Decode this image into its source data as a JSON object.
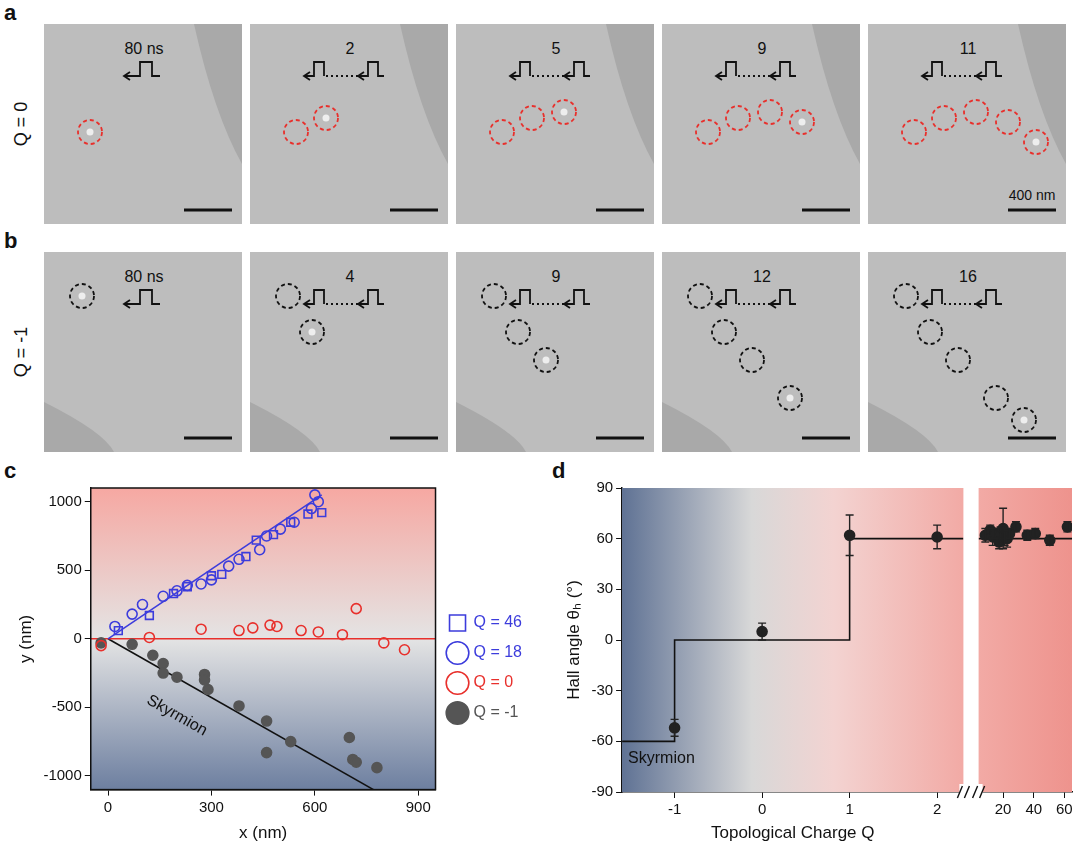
{
  "images": [
    {
      "letter": "a",
      "row_label": "Q = 0",
      "color": "#e8302c",
      "scale_bar_label": "400 nm",
      "frames": [
        {
          "pulse": "80 ns",
          "circles": 1
        },
        {
          "pulse": "2",
          "circles": 2
        },
        {
          "pulse": "5",
          "circles": 3
        },
        {
          "pulse": "9",
          "circles": 4
        },
        {
          "pulse": "11",
          "circles": 5
        }
      ]
    },
    {
      "letter": "b",
      "row_label": "Q = -1",
      "color": "#111111",
      "frames": [
        {
          "pulse": "80 ns",
          "circles": 1
        },
        {
          "pulse": "4",
          "circles": 2
        },
        {
          "pulse": "9",
          "circles": 3
        },
        {
          "pulse": "12",
          "circles": 4
        },
        {
          "pulse": "16",
          "circles": 5
        }
      ]
    }
  ],
  "chart_data": [
    {
      "panel": "c",
      "type": "scatter",
      "x_label": "x (nm)",
      "y_label": "y (nm)",
      "xlim": [
        -50,
        950
      ],
      "ylim": [
        -1100,
        1100
      ],
      "xticks": [
        0,
        300,
        600,
        900
      ],
      "yticks": [
        -1000,
        -500,
        0,
        500,
        1000
      ],
      "grid": false,
      "legend": "right",
      "series": [
        {
          "name": "Q = 46",
          "color": "#3c3cdc",
          "marker": "square_open",
          "x": [
            30,
            120,
            190,
            230,
            300,
            330,
            400,
            430,
            480,
            530,
            580,
            620
          ],
          "values": [
            60,
            170,
            330,
            380,
            460,
            470,
            600,
            720,
            760,
            850,
            910,
            920
          ]
        },
        {
          "name": "Q = 18",
          "color": "#3c3cdc",
          "marker": "circle_open",
          "x": [
            20,
            70,
            100,
            160,
            200,
            230,
            270,
            300,
            350,
            380,
            440,
            460,
            500,
            540,
            590,
            600,
            610
          ],
          "values": [
            90,
            180,
            250,
            310,
            350,
            390,
            400,
            430,
            530,
            580,
            650,
            750,
            800,
            850,
            950,
            1050,
            1000
          ]
        },
        {
          "name": "Q = 0",
          "color": "#e8302c",
          "marker": "circle_open",
          "x": [
            -20,
            120,
            270,
            380,
            420,
            470,
            490,
            560,
            610,
            680,
            720,
            800,
            860
          ],
          "values": [
            -50,
            10,
            70,
            60,
            80,
            100,
            90,
            60,
            50,
            30,
            220,
            -30,
            -80
          ]
        },
        {
          "name": "Q = -1",
          "color": "#555555",
          "marker": "circle",
          "x": [
            -20,
            70,
            130,
            160,
            160,
            200,
            280,
            290,
            280,
            380,
            460,
            460,
            530,
            700,
            710,
            720,
            780
          ],
          "values": [
            -30,
            -40,
            -120,
            -180,
            -250,
            -280,
            -260,
            -370,
            -300,
            -490,
            -600,
            -830,
            -750,
            -720,
            -880,
            -900,
            -940
          ]
        }
      ],
      "fit_lines": [
        {
          "color": "#3c3cdc",
          "x": [
            0,
            620
          ],
          "values": [
            0,
            1050
          ]
        },
        {
          "color": "#e8302c",
          "x": [
            -50,
            950
          ],
          "values": [
            0,
            0
          ]
        },
        {
          "color": "#111111",
          "x": [
            0,
            770
          ],
          "values": [
            0,
            -1100
          ]
        }
      ],
      "annotations": [
        {
          "text": "Skyrmion",
          "x": 200,
          "y": -560
        }
      ]
    },
    {
      "panel": "d",
      "type": "scatter",
      "x_label": "Topological Charge Q",
      "y_label": "Hall angle θₕ (°)",
      "xlim": [
        -1.6,
        2.3
      ],
      "ylim": [
        -90,
        90
      ],
      "xticks": [
        -1,
        0,
        1,
        2
      ],
      "yticks": [
        -90,
        -60,
        -30,
        0,
        30,
        60,
        90
      ],
      "grid": false,
      "series": [
        {
          "color": "#222222",
          "marker": "circle",
          "x": [
            -1,
            0,
            1,
            2
          ],
          "values": [
            -52,
            5,
            62,
            61
          ],
          "errors": [
            5,
            5,
            12,
            7
          ]
        }
      ],
      "fit_lines": [
        {
          "color": "#111111",
          "x": [
            -1.6,
            -1,
            -1,
            1,
            1,
            2.3
          ],
          "values": [
            -60,
            -60,
            0,
            0,
            60,
            60
          ]
        }
      ],
      "annotations": [
        {
          "text": "Skyrmion",
          "x": -1.15,
          "y": -70
        }
      ]
    },
    {
      "type": "scatter",
      "tick_labels": "x",
      "xlim": [
        4,
        65
      ],
      "ylim": [
        -90,
        90
      ],
      "xticks": [
        20,
        40,
        60
      ],
      "grid": false,
      "series": [
        {
          "color": "#222222",
          "marker": "circle",
          "x": [
            8.4,
            11.6,
            13.2,
            14.7,
            17.4,
            18.4,
            20,
            21,
            22.6,
            24.2,
            28.4,
            35.8,
            41,
            50.5,
            62
          ],
          "values": [
            62,
            65,
            61,
            63,
            58,
            64,
            66,
            60,
            60,
            63,
            67,
            62,
            63,
            59,
            67
          ],
          "errors": [
            4,
            3,
            5,
            3,
            4,
            3,
            12,
            4,
            5,
            3,
            3,
            3,
            3,
            3,
            3
          ]
        }
      ],
      "fit_lines": [
        {
          "color": "#111111",
          "x": [
            4,
            65
          ],
          "values": [
            60,
            60
          ]
        }
      ]
    }
  ]
}
